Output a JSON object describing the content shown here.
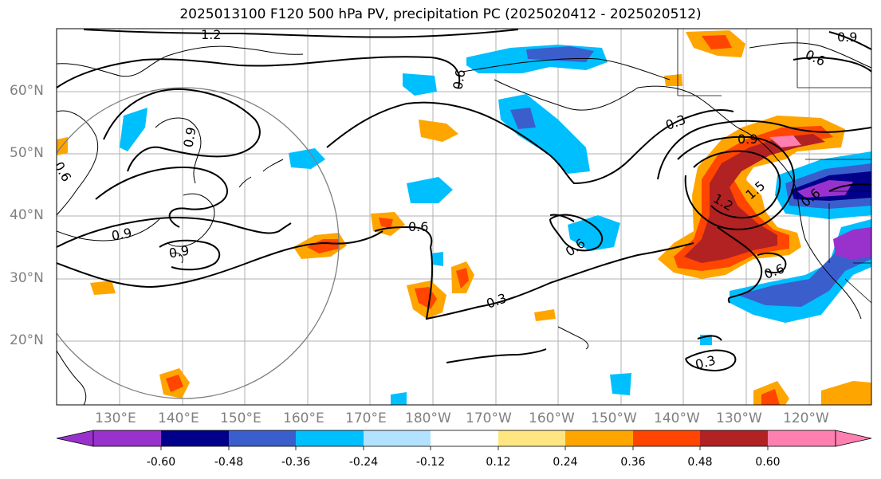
{
  "title": "2025013100 F120 500 hPa PV, precipitation PC (2025020412 - 2025020512)",
  "map": {
    "lat_labels": [
      "60°N",
      "50°N",
      "40°N",
      "30°N",
      "20°N"
    ],
    "lon_labels": [
      "130°E",
      "140°E",
      "150°E",
      "160°E",
      "170°E",
      "180°W",
      "170°W",
      "160°W",
      "150°W",
      "140°W",
      "130°W",
      "120°W"
    ],
    "contour_labels": [
      "1.2",
      "0.9",
      "0.6",
      "0.9",
      "0.6",
      "0.3",
      "1.2",
      "1.5",
      "0.6",
      "0.9",
      "0.9",
      "0.6",
      "0.6",
      "0.3",
      "0.6",
      "0.3",
      "0.9",
      "0.6"
    ],
    "colors": {
      "contour": "#000000",
      "grid": "#b0b0b0",
      "range_circle": "#808080"
    }
  },
  "colorbar": {
    "tick_labels": [
      "-0.60",
      "-0.48",
      "-0.36",
      "-0.24",
      "-0.12",
      "0.12",
      "0.24",
      "0.36",
      "0.48",
      "0.60"
    ],
    "colors": [
      "#9932cc",
      "#00008b",
      "#3a5fcd",
      "#00bfff",
      "#b2e2ff",
      "#ffffff",
      "#ffe680",
      "#ffa500",
      "#ff4500",
      "#b22222",
      "#ff80b0"
    ]
  }
}
